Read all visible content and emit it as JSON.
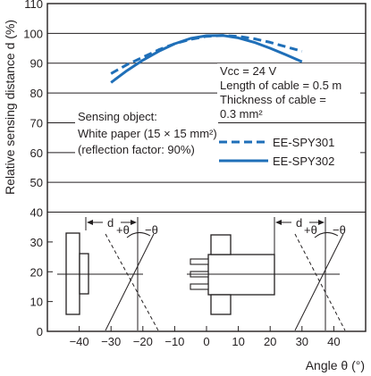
{
  "chart_data": {
    "type": "line",
    "xlabel": "Angle θ (°)",
    "ylabel": "Relative sensing distance d (%)",
    "xlim": [
      -50,
      50
    ],
    "ylim": [
      0,
      110
    ],
    "x_ticks": [
      -40,
      -30,
      -20,
      -10,
      0,
      10,
      20,
      30,
      40
    ],
    "y_ticks": [
      0,
      10,
      20,
      30,
      40,
      50,
      60,
      70,
      80,
      90,
      100,
      110
    ],
    "grid": true,
    "series": [
      {
        "name": "EE-SPY301",
        "style": "dashed",
        "color": "#1f6fb8",
        "x": [
          -30,
          -25,
          -20,
          -15,
          -10,
          -5,
          0,
          5,
          10,
          15,
          20,
          25,
          30
        ],
        "y": [
          86.5,
          89.5,
          92,
          94.5,
          96.5,
          98,
          99,
          99.3,
          99,
          98.2,
          97,
          95.5,
          94
        ]
      },
      {
        "name": "EE-SPY302",
        "style": "solid",
        "color": "#1f6fb8",
        "x": [
          -30,
          -25,
          -20,
          -15,
          -10,
          -5,
          0,
          5,
          10,
          15,
          20,
          25,
          30
        ],
        "y": [
          83.5,
          87.5,
          91,
          94,
          96.5,
          98.3,
          99.2,
          99.3,
          98.5,
          97,
          95,
          92.8,
          90.5
        ]
      }
    ],
    "annotations": {
      "conditions": [
        "Vcc = 24 V",
        "Length of cable = 0.5 m",
        "Thickness of cable =",
        "0.3 mm²"
      ],
      "sensing_object": [
        "Sensing object:",
        "White paper (15 × 15 mm²)",
        "(reflection factor: 90%)"
      ],
      "diagram_labels": [
        "d",
        "+θ",
        "−θ",
        "d",
        "+θ",
        "−θ"
      ]
    }
  }
}
